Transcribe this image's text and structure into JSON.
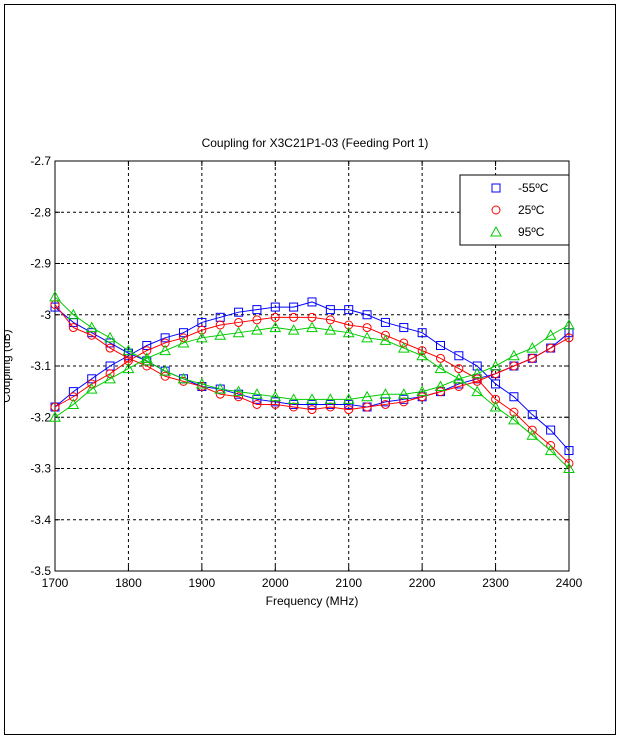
{
  "chart_data": {
    "type": "line",
    "title": "Coupling for X3C21P1-03 (Feeding Port 1)",
    "xlabel": "Frequency (MHz)",
    "ylabel": "Coupling (dB)",
    "xlim": [
      1700,
      2400
    ],
    "ylim": [
      -3.5,
      -2.7
    ],
    "xticks": [
      1700,
      1800,
      1900,
      2000,
      2100,
      2200,
      2300,
      2400
    ],
    "yticks": [
      -2.7,
      -2.8,
      -2.9,
      -3.0,
      -3.1,
      -3.2,
      -3.3,
      -3.4,
      -3.5
    ],
    "xtick_labels": [
      "1700",
      "1800",
      "1900",
      "2000",
      "2100",
      "2200",
      "2300",
      "2400"
    ],
    "ytick_labels": [
      "-2.7",
      "-2.8",
      "-2.9",
      "-3",
      "-3.1",
      "-3.2",
      "-3.3",
      "-3.4",
      "-3.5"
    ],
    "grid": true,
    "legend_position": "top-right",
    "x": [
      1700,
      1725,
      1750,
      1775,
      1800,
      1825,
      1850,
      1875,
      1900,
      1925,
      1950,
      1975,
      2000,
      2025,
      2050,
      2075,
      2100,
      2125,
      2150,
      2175,
      2200,
      2225,
      2250,
      2275,
      2300,
      2325,
      2350,
      2375,
      2400
    ],
    "series": [
      {
        "name": "-55ºC",
        "color": "#0000ff",
        "marker": "square",
        "curves": [
          [
            -3.18,
            -3.15,
            -3.125,
            -3.1,
            -3.08,
            -3.06,
            -3.045,
            -3.035,
            -3.015,
            -3.005,
            -2.995,
            -2.99,
            -2.985,
            -2.985,
            -2.975,
            -2.99,
            -2.99,
            -3.0,
            -3.015,
            -3.025,
            -3.035,
            -3.06,
            -3.08,
            -3.1,
            -3.135,
            -3.16,
            -3.195,
            -3.225,
            -3.265
          ],
          [
            -2.985,
            -3.015,
            -3.035,
            -3.055,
            -3.075,
            -3.09,
            -3.11,
            -3.125,
            -3.14,
            -3.145,
            -3.155,
            -3.165,
            -3.17,
            -3.175,
            -3.175,
            -3.175,
            -3.175,
            -3.18,
            -3.17,
            -3.165,
            -3.16,
            -3.15,
            -3.135,
            -3.125,
            -3.115,
            -3.1,
            -3.085,
            -3.065,
            -3.035
          ]
        ]
      },
      {
        "name": "25ºC",
        "color": "#ff0000",
        "marker": "circle",
        "curves": [
          [
            -3.18,
            -3.16,
            -3.135,
            -3.115,
            -3.09,
            -3.07,
            -3.055,
            -3.045,
            -3.03,
            -3.02,
            -3.015,
            -3.01,
            -3.005,
            -3.005,
            -3.005,
            -3.01,
            -3.02,
            -3.025,
            -3.04,
            -3.055,
            -3.07,
            -3.085,
            -3.105,
            -3.125,
            -3.165,
            -3.19,
            -3.225,
            -3.255,
            -3.29
          ],
          [
            -2.98,
            -3.025,
            -3.04,
            -3.065,
            -3.085,
            -3.1,
            -3.12,
            -3.13,
            -3.14,
            -3.155,
            -3.16,
            -3.175,
            -3.175,
            -3.18,
            -3.185,
            -3.18,
            -3.185,
            -3.18,
            -3.175,
            -3.17,
            -3.16,
            -3.15,
            -3.14,
            -3.13,
            -3.115,
            -3.1,
            -3.085,
            -3.065,
            -3.045
          ]
        ]
      },
      {
        "name": "95ºC",
        "color": "#00cc00",
        "marker": "triangle",
        "curves": [
          [
            -3.2,
            -3.175,
            -3.145,
            -3.125,
            -3.105,
            -3.085,
            -3.07,
            -3.055,
            -3.045,
            -3.04,
            -3.035,
            -3.03,
            -3.025,
            -3.03,
            -3.025,
            -3.03,
            -3.035,
            -3.045,
            -3.05,
            -3.065,
            -3.08,
            -3.105,
            -3.125,
            -3.15,
            -3.18,
            -3.205,
            -3.235,
            -3.265,
            -3.3
          ],
          [
            -2.965,
            -3.0,
            -3.025,
            -3.045,
            -3.07,
            -3.09,
            -3.11,
            -3.125,
            -3.135,
            -3.145,
            -3.15,
            -3.155,
            -3.16,
            -3.165,
            -3.165,
            -3.165,
            -3.165,
            -3.16,
            -3.155,
            -3.155,
            -3.15,
            -3.14,
            -3.125,
            -3.115,
            -3.1,
            -3.08,
            -3.065,
            -3.04,
            -3.02
          ]
        ]
      }
    ]
  }
}
